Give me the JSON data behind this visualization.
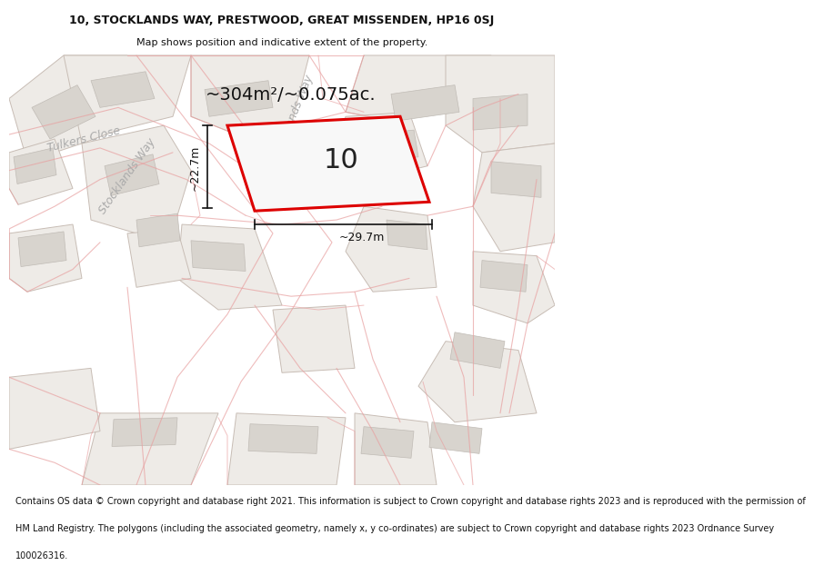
{
  "title_line1": "10, STOCKLANDS WAY, PRESTWOOD, GREAT MISSENDEN, HP16 0SJ",
  "title_line2": "Map shows position and indicative extent of the property.",
  "footer_lines": [
    "Contains OS data © Crown copyright and database right 2021. This information is subject to Crown copyright and database rights 2023 and is reproduced with the permission of",
    "HM Land Registry. The polygons (including the associated geometry, namely x, y co-ordinates) are subject to Crown copyright and database rights 2023 Ordnance Survey",
    "100026316."
  ],
  "area_text": "~304m²/~0.075ac.",
  "label_number": "10",
  "dim_height": "~22.7m",
  "dim_width": "~29.7m",
  "bg_color": "#f2eeeb",
  "plot_edge": "#dd0000",
  "plot_fill": "#f8f8f8",
  "building_fill": "#d8d4ce",
  "building_edge": "#c0bbb5",
  "road_label_color": "#aaaaaa",
  "dim_color": "#111111",
  "title_fontsize": 9,
  "subtitle_fontsize": 8,
  "area_fontsize": 14,
  "label_fontsize": 22,
  "dim_fontsize": 9,
  "road_fontsize": 9,
  "footer_fontsize": 7
}
